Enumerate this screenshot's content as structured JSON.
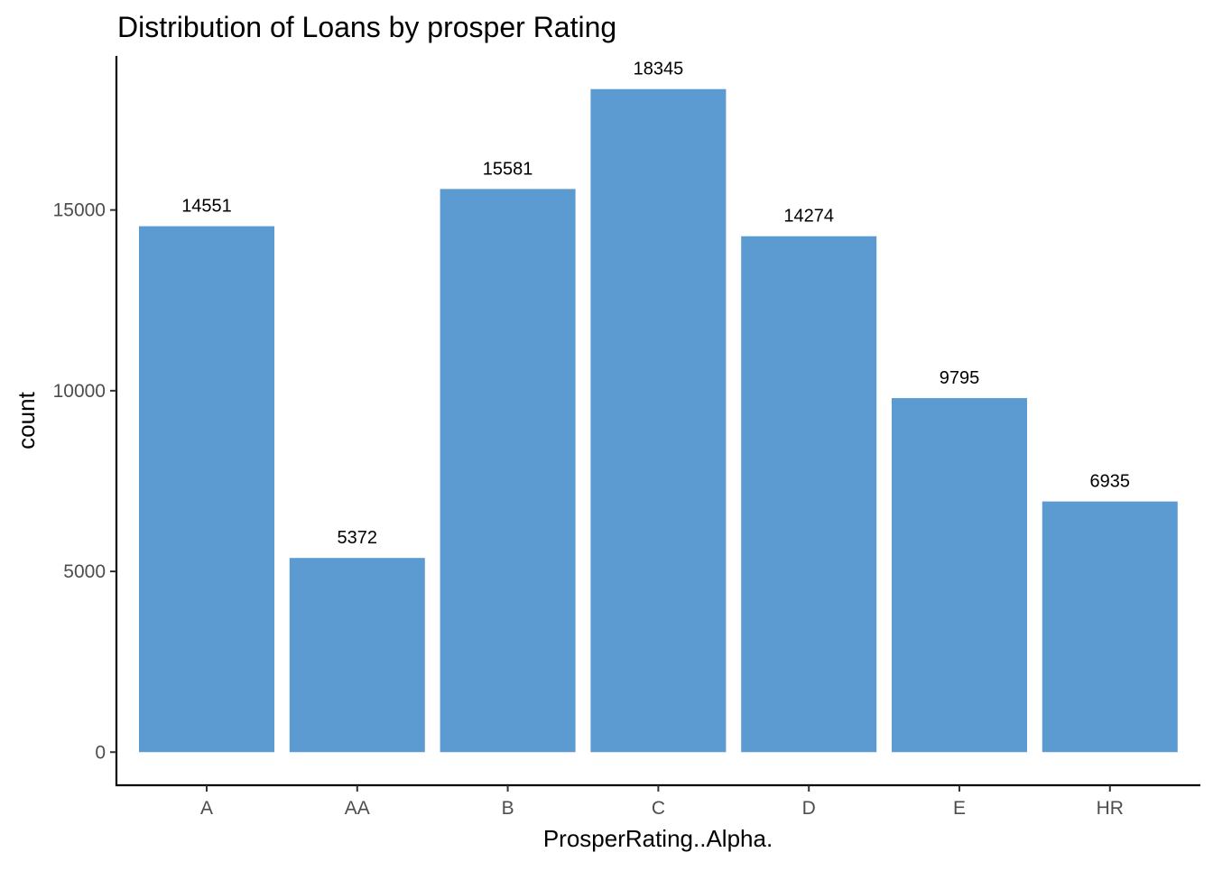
{
  "chart_data": {
    "type": "bar",
    "title": "Distribution of Loans by prosper Rating",
    "xlabel": "ProsperRating..Alpha.",
    "ylabel": "count",
    "categories": [
      "A",
      "AA",
      "B",
      "C",
      "D",
      "E",
      "HR"
    ],
    "values": [
      14551,
      5372,
      15581,
      18345,
      14274,
      9795,
      6935
    ],
    "data_labels": [
      "14551",
      "5372",
      "15581",
      "18345",
      "14274",
      "9795",
      "6935"
    ],
    "yticks": [
      0,
      5000,
      10000,
      15000
    ],
    "ytick_labels": [
      "0",
      "5000",
      "10000",
      "15000"
    ],
    "ylim": [
      -917,
      19262
    ],
    "bar_color": "#5b9bd1",
    "grid": false,
    "legend": "none"
  }
}
